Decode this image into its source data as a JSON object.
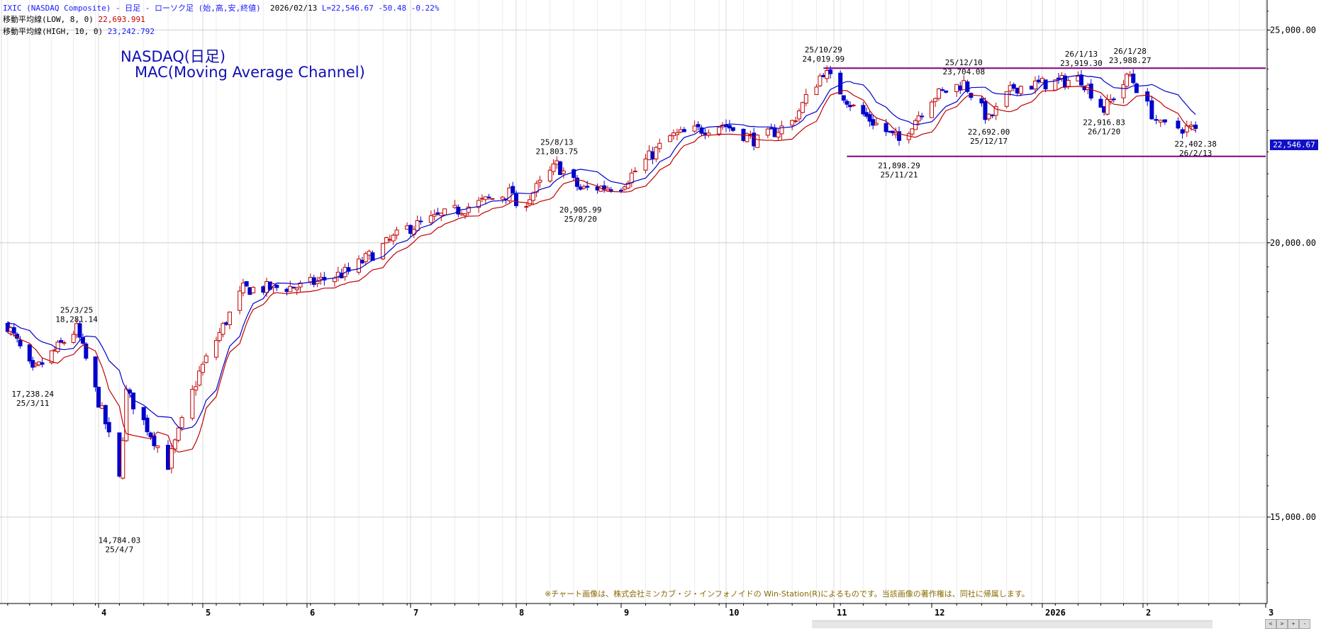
{
  "header": {
    "line1_symbol": "IXIC (NASDAQ Composite) - 日足 - ローソク足 (始,高,安,終値)",
    "line1_date": "2026/02/13",
    "line1_last": "L=22,546.67",
    "line1_change": "-50.48",
    "line1_pct": "-0.22%",
    "line2_label": "移動平均線(LOW, 8, 0)",
    "line2_value": "22,693.991",
    "line3_label": "移動平均線(HIGH, 10, 0)",
    "line3_value": "23,242.792"
  },
  "title_line1": "NASDAQ(日足)",
  "title_line2": "MAC(Moving Average Channel)",
  "current_price_label": "22,546.67",
  "credit": "※チャート画像は、株式会社ミンカブ・ジ・インフォノイドの Win-Station(R)によるものです。当該画像の著作権は、同社に帰属します。",
  "chart_data": {
    "type": "candlestick",
    "y_scale": "log",
    "ylim": [
      13700,
      25800
    ],
    "y_ticks": [
      15000,
      20000,
      25000
    ],
    "y_tick_labels": [
      "15,000.00",
      "20,000.00",
      "25,000.00"
    ],
    "x_tick_labels": [
      "4",
      "5",
      "6",
      "7",
      "8",
      "9",
      "10",
      "11",
      "12",
      "2026",
      "2",
      "3"
    ],
    "colors": {
      "up": "#c00000",
      "down": "#0000cc",
      "ma_low": "#c00000",
      "ma_high": "#0000cc",
      "channel": "#800080",
      "grid": "#d8d8d8"
    },
    "annotations": [
      {
        "date": "25/3/11",
        "value": "17,238.24",
        "kind": "low"
      },
      {
        "date": "25/3/25",
        "value": "18,281.14",
        "kind": "high"
      },
      {
        "date": "25/4/7",
        "value": "14,784.03",
        "kind": "low"
      },
      {
        "date": "25/8/13",
        "value": "21,803.75",
        "kind": "high"
      },
      {
        "date": "25/8/20",
        "value": "20,905.99",
        "kind": "low"
      },
      {
        "date": "25/10/29",
        "value": "24,019.99",
        "kind": "high"
      },
      {
        "date": "25/11/21",
        "value": "21,898.29",
        "kind": "low"
      },
      {
        "date": "25/12/10",
        "value": "23,704.08",
        "kind": "high"
      },
      {
        "date": "25/12/17",
        "value": "22,692.00",
        "kind": "low"
      },
      {
        "date": "26/1/13",
        "value": "23,919.30",
        "kind": "high"
      },
      {
        "date": "26/1/20",
        "value": "22,916.83",
        "kind": "low"
      },
      {
        "date": "26/1/28",
        "value": "23,988.27",
        "kind": "high"
      },
      {
        "date": "26/2/13",
        "value": "22,402.38",
        "kind": "low"
      }
    ],
    "channel_lines": [
      {
        "from": "25/10/29",
        "to": "2026/03",
        "value": 24019.99
      },
      {
        "from": "25/11/05",
        "to": "2026/03",
        "value": 21898.29
      }
    ],
    "anchors": [
      {
        "date": "2025-03-03",
        "close": 18350
      },
      {
        "date": "2025-03-11",
        "close": 17450
      },
      {
        "date": "2025-03-25",
        "close": 18270
      },
      {
        "date": "2025-04-03",
        "close": 16550
      },
      {
        "date": "2025-04-07",
        "close": 15600
      },
      {
        "date": "2025-04-09",
        "close": 17100
      },
      {
        "date": "2025-04-21",
        "close": 15850
      },
      {
        "date": "2025-04-30",
        "close": 17450
      },
      {
        "date": "2025-05-13",
        "close": 19050
      },
      {
        "date": "2025-05-30",
        "close": 19100
      },
      {
        "date": "2025-06-13",
        "close": 19400
      },
      {
        "date": "2025-06-30",
        "close": 20300
      },
      {
        "date": "2025-07-15",
        "close": 20700
      },
      {
        "date": "2025-07-31",
        "close": 21100
      },
      {
        "date": "2025-08-01",
        "close": 20650
      },
      {
        "date": "2025-08-13",
        "close": 21700
      },
      {
        "date": "2025-08-20",
        "close": 21150
      },
      {
        "date": "2025-09-01",
        "close": 21250
      },
      {
        "date": "2025-09-15",
        "close": 22350
      },
      {
        "date": "2025-09-30",
        "close": 22650
      },
      {
        "date": "2025-10-10",
        "close": 22250
      },
      {
        "date": "2025-10-20",
        "close": 22700
      },
      {
        "date": "2025-10-29",
        "close": 23950
      },
      {
        "date": "2025-11-07",
        "close": 23050
      },
      {
        "date": "2025-11-21",
        "close": 22250
      },
      {
        "date": "2025-12-01",
        "close": 23300
      },
      {
        "date": "2025-12-10",
        "close": 23650
      },
      {
        "date": "2025-12-17",
        "close": 22750
      },
      {
        "date": "2025-12-24",
        "close": 23550
      },
      {
        "date": "2026-01-13",
        "close": 23750
      },
      {
        "date": "2026-01-20",
        "close": 23000
      },
      {
        "date": "2026-01-28",
        "close": 23850
      },
      {
        "date": "2026-02-05",
        "close": 22600
      },
      {
        "date": "2026-02-13",
        "close": 22546.67
      }
    ]
  }
}
